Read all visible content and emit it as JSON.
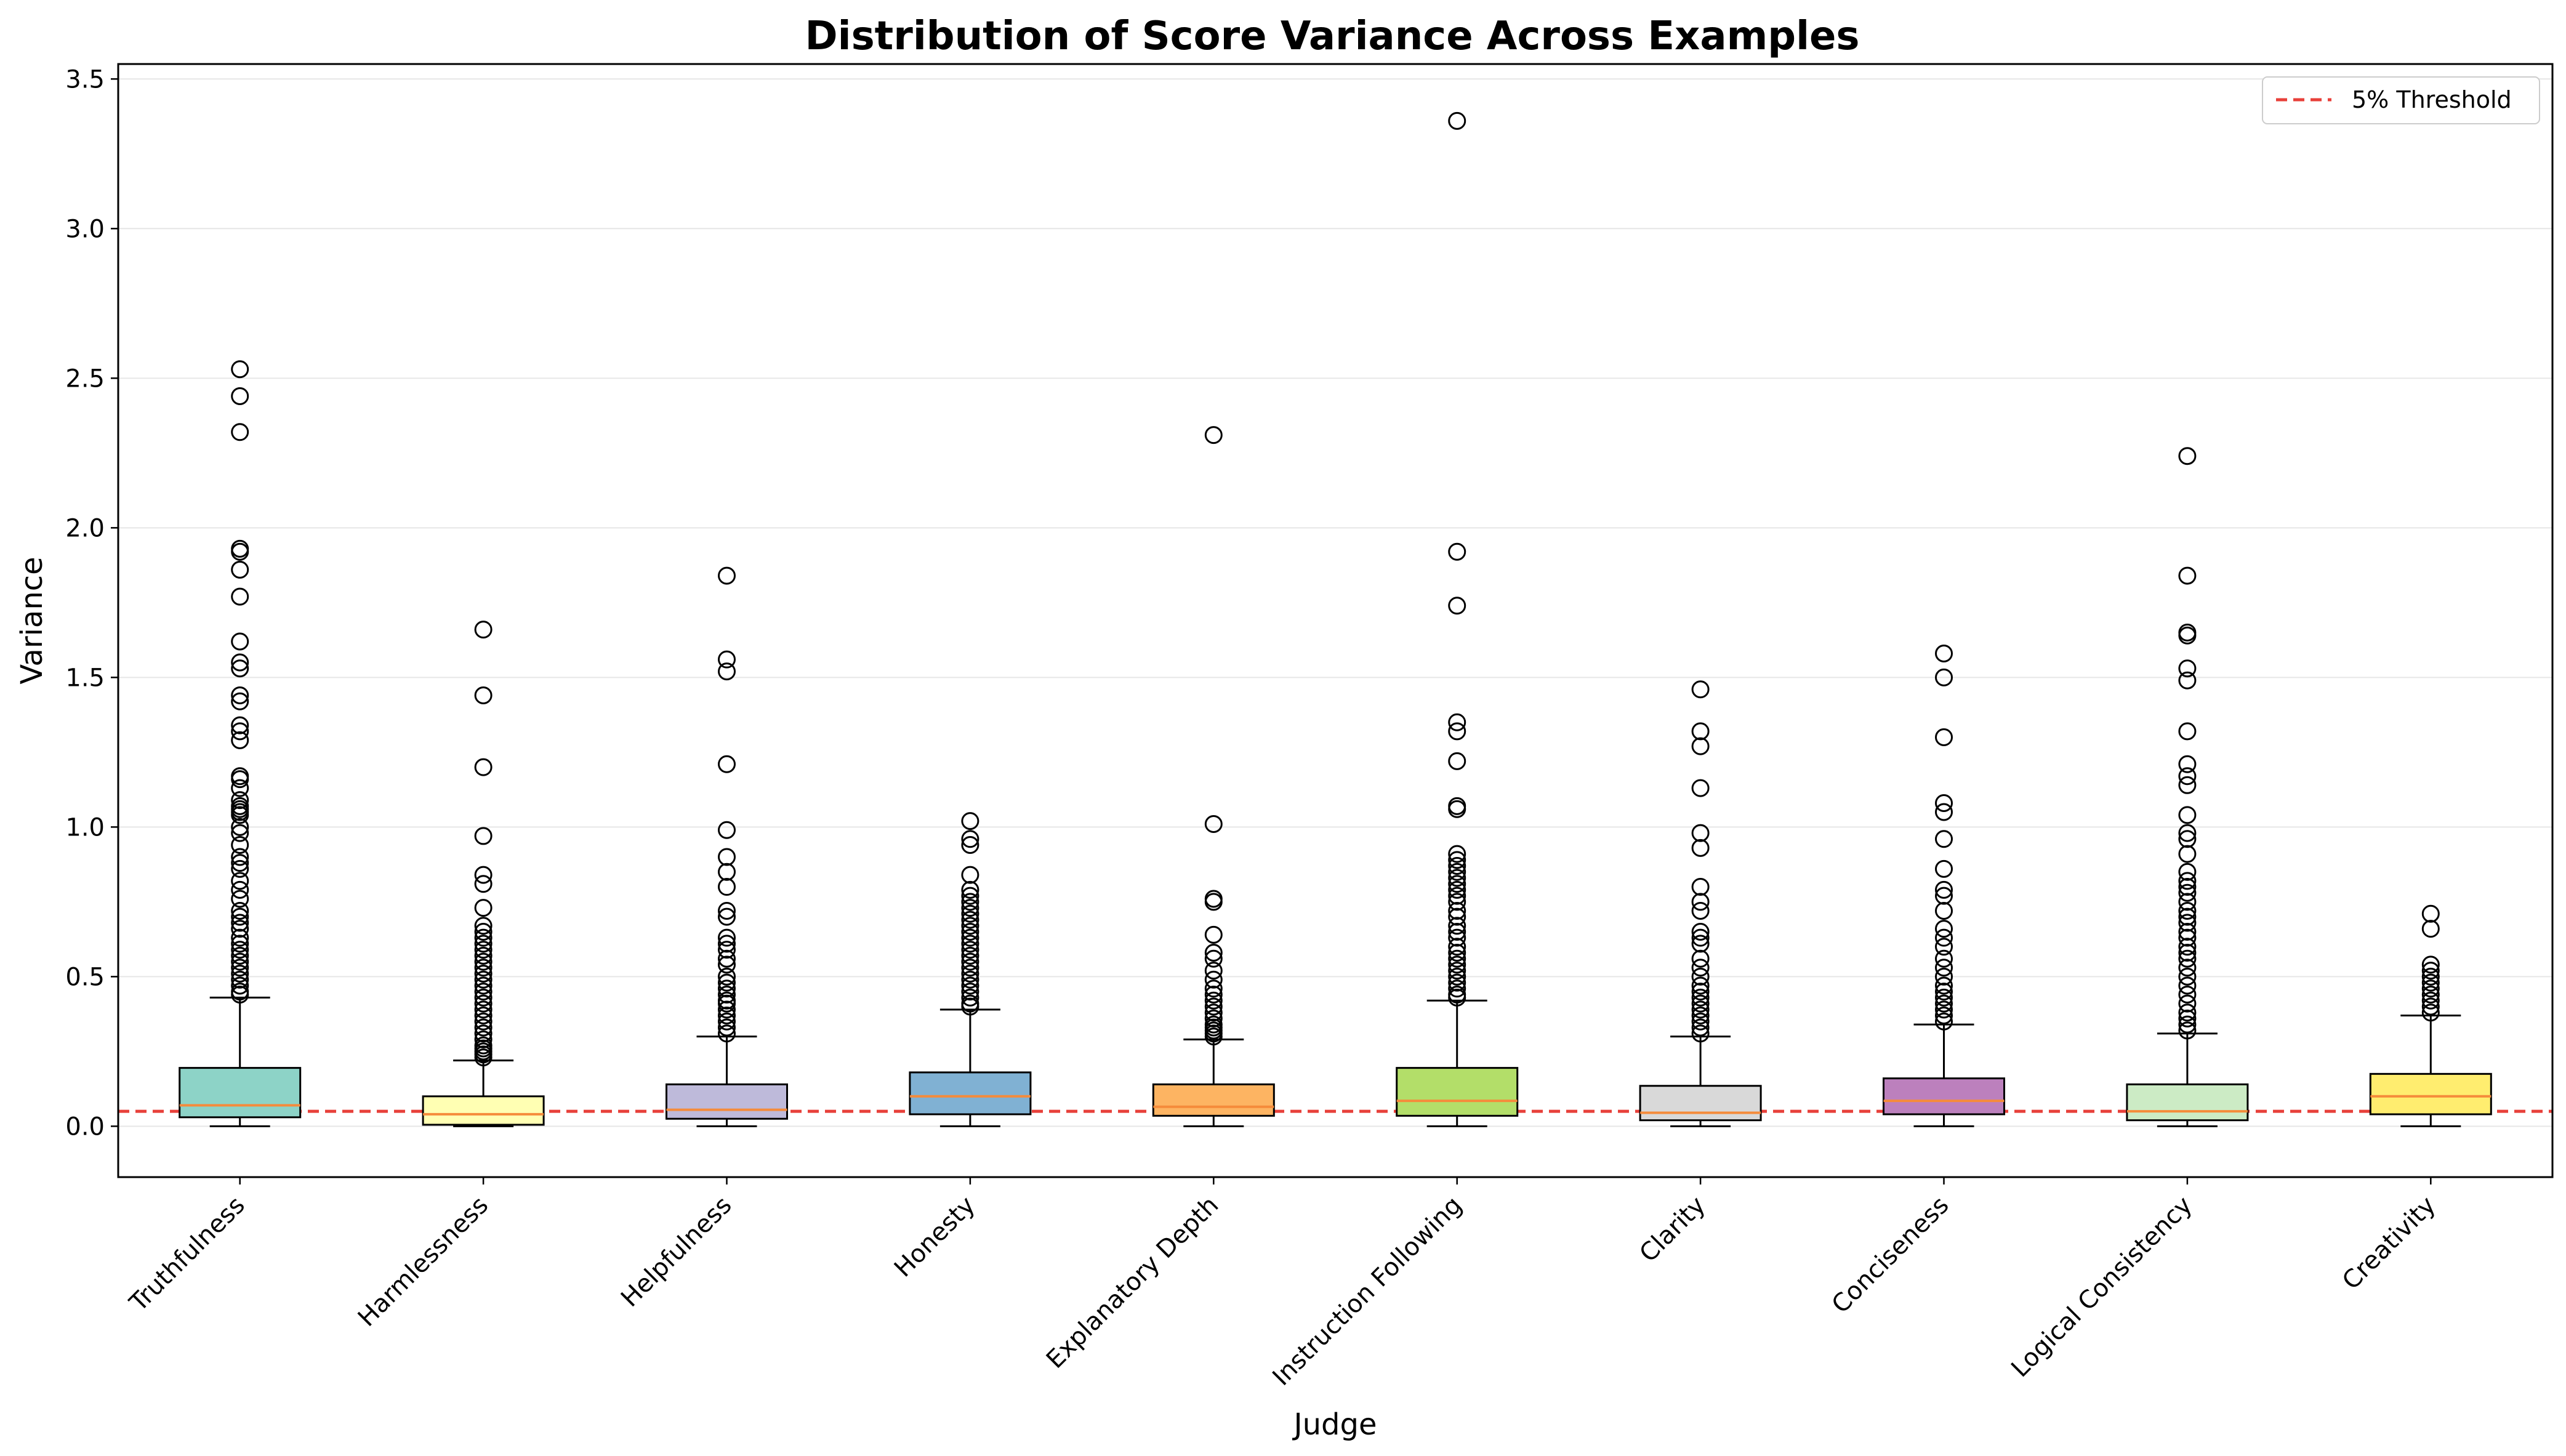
{
  "chart_data": {
    "type": "box",
    "title": "Distribution of Score Variance Across Examples",
    "xlabel": "Judge",
    "ylabel": "Variance",
    "ylim": [
      -0.17,
      3.55
    ],
    "yticks": [
      0.0,
      0.5,
      1.0,
      1.5,
      2.0,
      2.5,
      3.0,
      3.5
    ],
    "ytick_labels": [
      "0.0",
      "0.5",
      "1.0",
      "1.5",
      "2.0",
      "2.5",
      "3.0",
      "3.5"
    ],
    "grid": "y",
    "legend": {
      "placement": "top-right",
      "entries": [
        "5% Threshold"
      ]
    },
    "threshold": {
      "label": "5% Threshold",
      "value": 0.05,
      "color": "#e8403a",
      "style": "dashed"
    },
    "median_color": "#f58b3b",
    "categories": [
      "Truthfulness",
      "Harmlessness",
      "Helpfulness",
      "Honesty",
      "Explanatory Depth",
      "Instruction Following",
      "Clarity",
      "Conciseness",
      "Logical Consistency",
      "Creativity"
    ],
    "boxes": [
      {
        "label": "Truthfulness",
        "color": "#8dd3c7",
        "whisker_low": 0.0,
        "q1": 0.03,
        "median": 0.07,
        "q3": 0.195,
        "whisker_high": 0.43,
        "outliers": [
          2.53,
          2.44,
          2.32,
          1.93,
          1.92,
          1.86,
          1.77,
          1.62,
          1.55,
          1.53,
          1.44,
          1.42,
          1.34,
          1.32,
          1.29,
          1.17,
          1.16,
          1.13,
          1.09,
          1.07,
          1.06,
          1.05,
          1.04,
          1.0,
          0.98,
          0.94,
          0.9,
          0.88,
          0.86,
          0.82,
          0.79,
          0.76,
          0.72,
          0.7,
          0.68,
          0.66,
          0.63,
          0.61,
          0.59,
          0.57,
          0.55,
          0.53,
          0.51,
          0.49,
          0.47,
          0.45,
          0.44
        ]
      },
      {
        "label": "Harmlessness",
        "color": "#ffffb3",
        "whisker_low": 0.0,
        "q1": 0.005,
        "median": 0.04,
        "q3": 0.1,
        "whisker_high": 0.22,
        "outliers": [
          1.66,
          1.44,
          1.2,
          0.97,
          0.84,
          0.81,
          0.73,
          0.67,
          0.65,
          0.63,
          0.61,
          0.59,
          0.57,
          0.55,
          0.53,
          0.51,
          0.49,
          0.47,
          0.45,
          0.43,
          0.41,
          0.39,
          0.37,
          0.35,
          0.33,
          0.31,
          0.29,
          0.27,
          0.26,
          0.25,
          0.24,
          0.23
        ]
      },
      {
        "label": "Helpfulness",
        "color": "#bebada",
        "whisker_low": 0.0,
        "q1": 0.025,
        "median": 0.055,
        "q3": 0.14,
        "whisker_high": 0.3,
        "outliers": [
          1.84,
          1.56,
          1.52,
          1.21,
          0.99,
          0.9,
          0.85,
          0.8,
          0.72,
          0.7,
          0.63,
          0.61,
          0.59,
          0.56,
          0.54,
          0.5,
          0.48,
          0.46,
          0.44,
          0.42,
          0.41,
          0.39,
          0.37,
          0.35,
          0.33,
          0.31
        ]
      },
      {
        "label": "Honesty",
        "color": "#80b1d3",
        "whisker_low": 0.0,
        "q1": 0.04,
        "median": 0.1,
        "q3": 0.18,
        "whisker_high": 0.39,
        "outliers": [
          1.02,
          0.96,
          0.94,
          0.84,
          0.79,
          0.77,
          0.75,
          0.73,
          0.71,
          0.69,
          0.67,
          0.65,
          0.63,
          0.61,
          0.59,
          0.57,
          0.55,
          0.53,
          0.51,
          0.49,
          0.47,
          0.45,
          0.43,
          0.41,
          0.4
        ]
      },
      {
        "label": "Explanatory Depth",
        "color": "#fdb462",
        "whisker_low": 0.0,
        "q1": 0.035,
        "median": 0.065,
        "q3": 0.14,
        "whisker_high": 0.29,
        "outliers": [
          2.31,
          1.01,
          0.76,
          0.75,
          0.64,
          0.58,
          0.56,
          0.52,
          0.49,
          0.46,
          0.44,
          0.42,
          0.4,
          0.38,
          0.36,
          0.34,
          0.33,
          0.32,
          0.31,
          0.3
        ]
      },
      {
        "label": "Instruction Following",
        "color": "#b3de69",
        "whisker_low": 0.0,
        "q1": 0.035,
        "median": 0.085,
        "q3": 0.195,
        "whisker_high": 0.42,
        "outliers": [
          3.36,
          1.92,
          1.74,
          1.35,
          1.32,
          1.22,
          1.07,
          1.06,
          0.91,
          0.89,
          0.87,
          0.85,
          0.83,
          0.81,
          0.79,
          0.77,
          0.75,
          0.72,
          0.7,
          0.67,
          0.65,
          0.63,
          0.6,
          0.58,
          0.56,
          0.54,
          0.52,
          0.5,
          0.48,
          0.46,
          0.44,
          0.43
        ]
      },
      {
        "label": "Clarity",
        "color": "#d9d9d9",
        "whisker_low": 0.0,
        "q1": 0.02,
        "median": 0.045,
        "q3": 0.135,
        "whisker_high": 0.3,
        "outliers": [
          1.46,
          1.32,
          1.27,
          1.13,
          0.98,
          0.93,
          0.8,
          0.75,
          0.72,
          0.65,
          0.63,
          0.61,
          0.56,
          0.53,
          0.5,
          0.47,
          0.45,
          0.43,
          0.41,
          0.39,
          0.37,
          0.35,
          0.33,
          0.31
        ]
      },
      {
        "label": "Conciseness",
        "color": "#bc80bd",
        "whisker_low": 0.0,
        "q1": 0.04,
        "median": 0.085,
        "q3": 0.16,
        "whisker_high": 0.34,
        "outliers": [
          1.58,
          1.5,
          1.3,
          1.08,
          1.05,
          0.96,
          0.86,
          0.79,
          0.77,
          0.72,
          0.66,
          0.63,
          0.6,
          0.56,
          0.53,
          0.5,
          0.47,
          0.45,
          0.43,
          0.41,
          0.39,
          0.37,
          0.35
        ]
      },
      {
        "label": "Logical Consistency",
        "color": "#ccebc5",
        "whisker_low": 0.0,
        "q1": 0.02,
        "median": 0.05,
        "q3": 0.14,
        "whisker_high": 0.31,
        "outliers": [
          2.24,
          1.84,
          1.65,
          1.64,
          1.53,
          1.49,
          1.32,
          1.21,
          1.17,
          1.14,
          1.04,
          0.98,
          0.96,
          0.91,
          0.85,
          0.82,
          0.8,
          0.78,
          0.75,
          0.72,
          0.7,
          0.68,
          0.65,
          0.63,
          0.6,
          0.58,
          0.56,
          0.53,
          0.5,
          0.47,
          0.44,
          0.41,
          0.38,
          0.36,
          0.34,
          0.32
        ]
      },
      {
        "label": "Creativity",
        "color": "#ffed6f",
        "whisker_low": 0.0,
        "q1": 0.04,
        "median": 0.1,
        "q3": 0.175,
        "whisker_high": 0.37,
        "outliers": [
          0.71,
          0.66,
          0.54,
          0.52,
          0.5,
          0.48,
          0.46,
          0.44,
          0.42,
          0.4,
          0.38
        ]
      }
    ]
  }
}
